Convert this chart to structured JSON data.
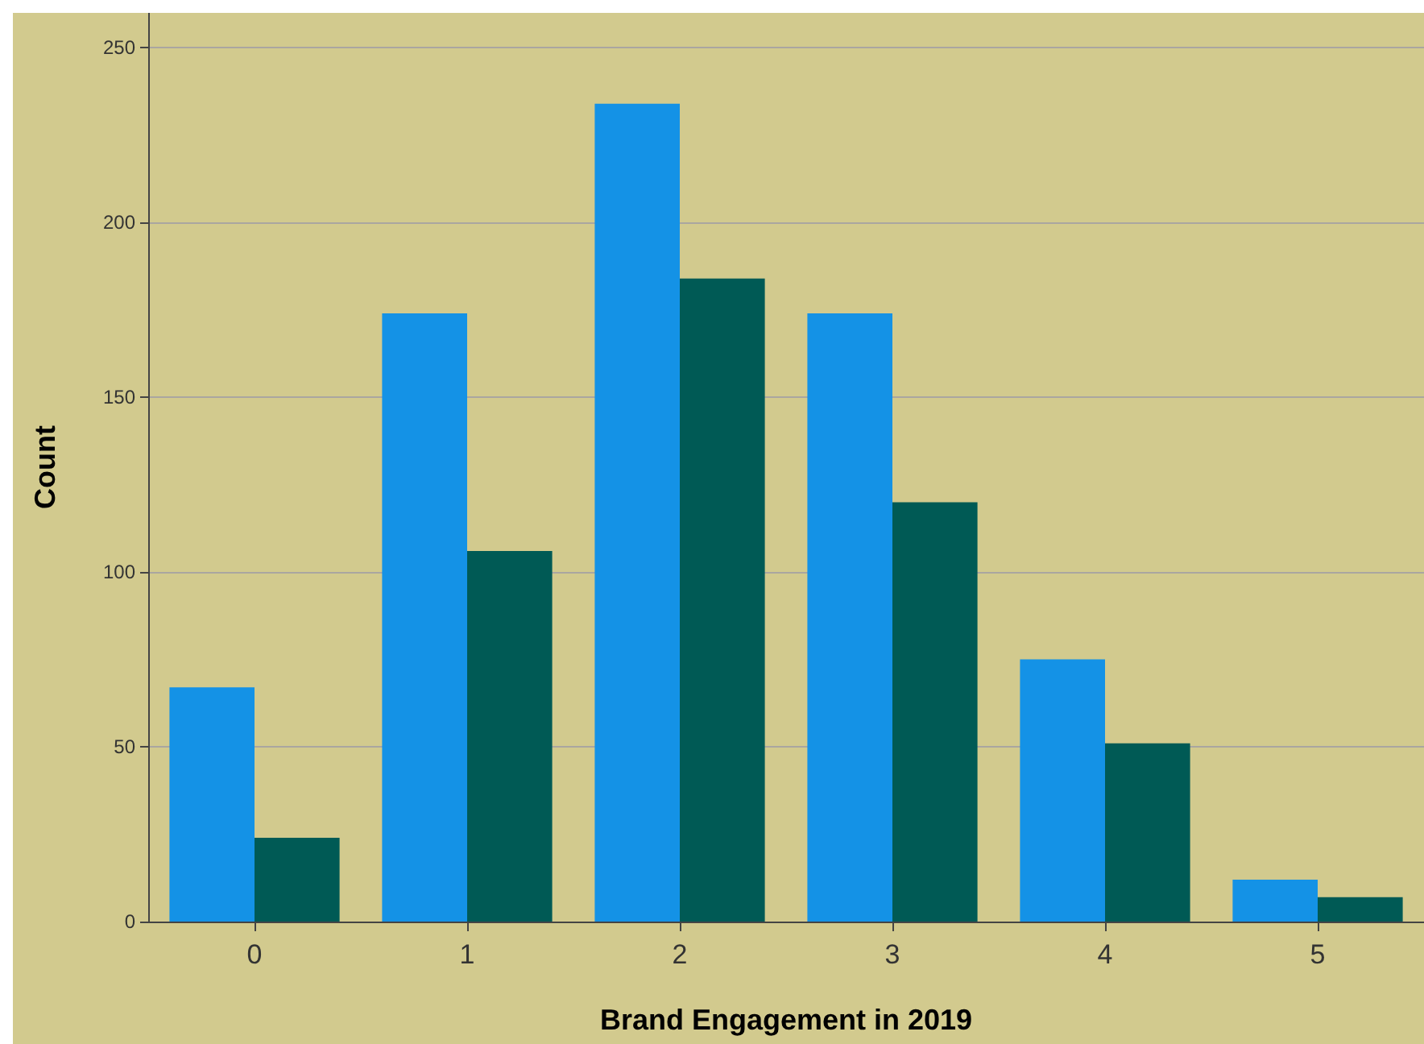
{
  "chart_data": {
    "type": "bar",
    "xlabel": "Brand Engagement in 2019",
    "ylabel": "Count",
    "categories": [
      "0",
      "1",
      "2",
      "3",
      "4",
      "5"
    ],
    "series": [
      {
        "color": "#1492e6",
        "values": [
          67,
          174,
          234,
          174,
          75,
          12
        ]
      },
      {
        "color": "#005a55",
        "values": [
          24,
          106,
          184,
          120,
          51,
          7
        ]
      }
    ],
    "ylim": [
      0,
      260
    ],
    "yticks": [
      0,
      50,
      100,
      150,
      200,
      250
    ],
    "grid": "y"
  }
}
